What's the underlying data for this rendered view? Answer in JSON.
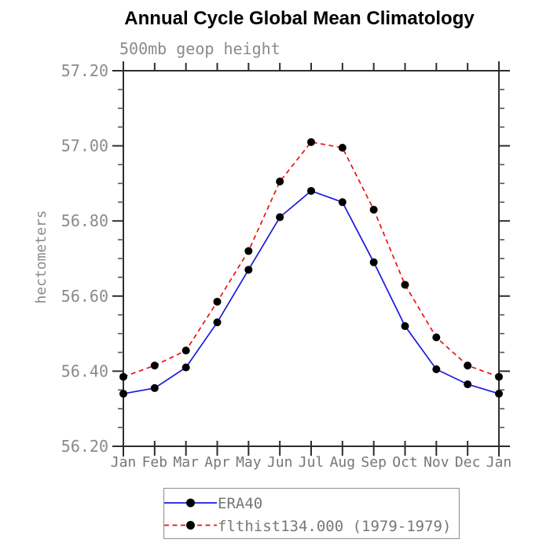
{
  "header": {
    "title": "Annual Cycle Global Mean Climatology",
    "subtitle": "500mb geop height"
  },
  "colors": {
    "frame": "#2e2e2e",
    "minor_tick": "#555555",
    "title": "#000000",
    "subtitle_text": "#8a8a8a",
    "axis_text": "#8a8a8a",
    "month_text": "#777777",
    "legend_border": "#999999",
    "era40_line": "#1a1ae0",
    "flthist_line": "#ee1111",
    "marker": "#000000"
  },
  "chart_data": {
    "type": "line",
    "title": "Annual Cycle Global Mean Climatology",
    "subtitle": "500mb geop height",
    "xlabel": "",
    "ylabel": "hectometers",
    "categories": [
      "Jan",
      "Feb",
      "Mar",
      "Apr",
      "May",
      "Jun",
      "Jul",
      "Aug",
      "Sep",
      "Oct",
      "Nov",
      "Dec",
      "Jan"
    ],
    "ylim": [
      56.2,
      57.2
    ],
    "yticks": [
      56.2,
      56.4,
      56.6,
      56.8,
      57.0,
      57.2
    ],
    "ytick_step": 0.2,
    "yminor_step": 0.05,
    "grid": false,
    "legend_position": "bottom",
    "series": [
      {
        "name": "ERA40",
        "color": "#1a1ae0",
        "line_style": "solid",
        "marker": "circle",
        "marker_color": "#000000",
        "values": [
          56.34,
          56.355,
          56.41,
          56.53,
          56.67,
          56.81,
          56.88,
          56.85,
          56.69,
          56.52,
          56.405,
          56.365,
          56.34
        ]
      },
      {
        "name": "flthist134.000 (1979-1979)",
        "color": "#ee1111",
        "line_style": "dashed",
        "marker": "circle",
        "marker_color": "#000000",
        "values": [
          56.385,
          56.415,
          56.455,
          56.585,
          56.72,
          56.905,
          57.01,
          56.995,
          56.83,
          56.63,
          56.49,
          56.415,
          56.385
        ]
      }
    ]
  }
}
